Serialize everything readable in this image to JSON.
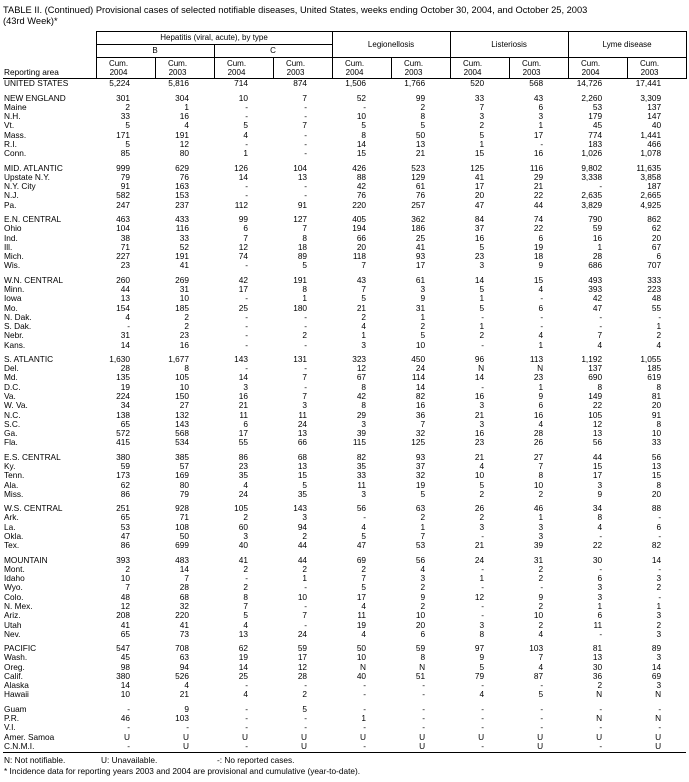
{
  "title": {
    "line1": "TABLE II. (Continued) Provisional cases of selected notifiable diseases, United States, weeks ending October 30, 2004, and October 25, 2003",
    "line2": "(43rd Week)*"
  },
  "header": {
    "reporting_area_label": "Reporting area",
    "hepatitis_group": "Hepatitis (viral, acute), by type",
    "hep_b": "B",
    "hep_c": "C",
    "legionellosis": "Legionellosis",
    "listeriosis": "Listeriosis",
    "lyme": "Lyme disease",
    "cum_label": "Cum.",
    "year_2004": "2004",
    "year_2003": "2003"
  },
  "sections": [
    {
      "rows": [
        {
          "area": "UNITED STATES",
          "values": [
            "5,224",
            "5,816",
            "714",
            "874",
            "1,506",
            "1,766",
            "520",
            "568",
            "14,726",
            "17,441"
          ]
        }
      ]
    },
    {
      "rows": [
        {
          "area": "NEW ENGLAND",
          "values": [
            "301",
            "304",
            "10",
            "7",
            "52",
            "99",
            "33",
            "43",
            "2,260",
            "3,309"
          ]
        },
        {
          "area": "Maine",
          "values": [
            "2",
            "1",
            "-",
            "-",
            "-",
            "2",
            "7",
            "6",
            "53",
            "137"
          ]
        },
        {
          "area": "N.H.",
          "values": [
            "33",
            "16",
            "-",
            "-",
            "10",
            "8",
            "3",
            "3",
            "179",
            "147"
          ]
        },
        {
          "area": "Vt.",
          "values": [
            "5",
            "4",
            "5",
            "7",
            "5",
            "5",
            "2",
            "1",
            "45",
            "40"
          ]
        },
        {
          "area": "Mass.",
          "values": [
            "171",
            "191",
            "4",
            "-",
            "8",
            "50",
            "5",
            "17",
            "774",
            "1,441"
          ]
        },
        {
          "area": "R.I.",
          "values": [
            "5",
            "12",
            "-",
            "-",
            "14",
            "13",
            "1",
            "-",
            "183",
            "466"
          ]
        },
        {
          "area": "Conn.",
          "values": [
            "85",
            "80",
            "1",
            "-",
            "15",
            "21",
            "15",
            "16",
            "1,026",
            "1,078"
          ]
        }
      ]
    },
    {
      "rows": [
        {
          "area": "MID. ATLANTIC",
          "values": [
            "999",
            "629",
            "126",
            "104",
            "426",
            "523",
            "125",
            "116",
            "9,802",
            "11,635"
          ]
        },
        {
          "area": "Upstate N.Y.",
          "values": [
            "79",
            "76",
            "14",
            "13",
            "88",
            "129",
            "41",
            "29",
            "3,338",
            "3,858"
          ]
        },
        {
          "area": "N.Y. City",
          "values": [
            "91",
            "163",
            "-",
            "-",
            "42",
            "61",
            "17",
            "21",
            "-",
            "187"
          ]
        },
        {
          "area": "N.J.",
          "values": [
            "582",
            "153",
            "-",
            "-",
            "76",
            "76",
            "20",
            "22",
            "2,635",
            "2,665"
          ]
        },
        {
          "area": "Pa.",
          "values": [
            "247",
            "237",
            "112",
            "91",
            "220",
            "257",
            "47",
            "44",
            "3,829",
            "4,925"
          ]
        }
      ]
    },
    {
      "rows": [
        {
          "area": "E.N. CENTRAL",
          "values": [
            "463",
            "433",
            "99",
            "127",
            "405",
            "362",
            "84",
            "74",
            "790",
            "862"
          ]
        },
        {
          "area": "Ohio",
          "values": [
            "104",
            "116",
            "6",
            "7",
            "194",
            "186",
            "37",
            "22",
            "59",
            "62"
          ]
        },
        {
          "area": "Ind.",
          "values": [
            "38",
            "33",
            "7",
            "8",
            "66",
            "25",
            "16",
            "6",
            "16",
            "20"
          ]
        },
        {
          "area": "Ill.",
          "values": [
            "71",
            "52",
            "12",
            "18",
            "20",
            "41",
            "5",
            "19",
            "1",
            "67"
          ]
        },
        {
          "area": "Mich.",
          "values": [
            "227",
            "191",
            "74",
            "89",
            "118",
            "93",
            "23",
            "18",
            "28",
            "6"
          ]
        },
        {
          "area": "Wis.",
          "values": [
            "23",
            "41",
            "-",
            "5",
            "7",
            "17",
            "3",
            "9",
            "686",
            "707"
          ]
        }
      ]
    },
    {
      "rows": [
        {
          "area": "W.N. CENTRAL",
          "values": [
            "260",
            "269",
            "42",
            "191",
            "43",
            "61",
            "14",
            "15",
            "493",
            "333"
          ]
        },
        {
          "area": "Minn.",
          "values": [
            "44",
            "31",
            "17",
            "8",
            "7",
            "3",
            "5",
            "4",
            "393",
            "223"
          ]
        },
        {
          "area": "Iowa",
          "values": [
            "13",
            "10",
            "-",
            "1",
            "5",
            "9",
            "1",
            "-",
            "42",
            "48"
          ]
        },
        {
          "area": "Mo.",
          "values": [
            "154",
            "185",
            "25",
            "180",
            "21",
            "31",
            "5",
            "6",
            "47",
            "55"
          ]
        },
        {
          "area": "N. Dak.",
          "values": [
            "4",
            "2",
            "-",
            "-",
            "2",
            "1",
            "-",
            "-",
            "-",
            "-"
          ]
        },
        {
          "area": "S. Dak.",
          "values": [
            "-",
            "2",
            "-",
            "-",
            "4",
            "2",
            "1",
            "-",
            "-",
            "1"
          ]
        },
        {
          "area": "Nebr.",
          "values": [
            "31",
            "23",
            "-",
            "2",
            "1",
            "5",
            "2",
            "4",
            "7",
            "2"
          ]
        },
        {
          "area": "Kans.",
          "values": [
            "14",
            "16",
            "-",
            "-",
            "3",
            "10",
            "-",
            "1",
            "4",
            "4"
          ]
        }
      ]
    },
    {
      "rows": [
        {
          "area": "S. ATLANTIC",
          "values": [
            "1,630",
            "1,677",
            "143",
            "131",
            "323",
            "450",
            "96",
            "113",
            "1,192",
            "1,055"
          ]
        },
        {
          "area": "Del.",
          "values": [
            "28",
            "8",
            "-",
            "-",
            "12",
            "24",
            "N",
            "N",
            "137",
            "185"
          ]
        },
        {
          "area": "Md.",
          "values": [
            "135",
            "105",
            "14",
            "7",
            "67",
            "114",
            "14",
            "23",
            "690",
            "619"
          ]
        },
        {
          "area": "D.C.",
          "values": [
            "19",
            "10",
            "3",
            "-",
            "8",
            "14",
            "-",
            "1",
            "8",
            "8"
          ]
        },
        {
          "area": "Va.",
          "values": [
            "224",
            "150",
            "16",
            "7",
            "42",
            "82",
            "16",
            "9",
            "149",
            "81"
          ]
        },
        {
          "area": "W. Va.",
          "values": [
            "34",
            "27",
            "21",
            "3",
            "8",
            "16",
            "3",
            "6",
            "22",
            "20"
          ]
        },
        {
          "area": "N.C.",
          "values": [
            "138",
            "132",
            "11",
            "11",
            "29",
            "36",
            "21",
            "16",
            "105",
            "91"
          ]
        },
        {
          "area": "S.C.",
          "values": [
            "65",
            "143",
            "6",
            "24",
            "3",
            "7",
            "3",
            "4",
            "12",
            "8"
          ]
        },
        {
          "area": "Ga.",
          "values": [
            "572",
            "568",
            "17",
            "13",
            "39",
            "32",
            "16",
            "28",
            "13",
            "10"
          ]
        },
        {
          "area": "Fla.",
          "values": [
            "415",
            "534",
            "55",
            "66",
            "115",
            "125",
            "23",
            "26",
            "56",
            "33"
          ]
        }
      ]
    },
    {
      "rows": [
        {
          "area": "E.S. CENTRAL",
          "values": [
            "380",
            "385",
            "86",
            "68",
            "82",
            "93",
            "21",
            "27",
            "44",
            "56"
          ]
        },
        {
          "area": "Ky.",
          "values": [
            "59",
            "57",
            "23",
            "13",
            "35",
            "37",
            "4",
            "7",
            "15",
            "13"
          ]
        },
        {
          "area": "Tenn.",
          "values": [
            "173",
            "169",
            "35",
            "15",
            "33",
            "32",
            "10",
            "8",
            "17",
            "15"
          ]
        },
        {
          "area": "Ala.",
          "values": [
            "62",
            "80",
            "4",
            "5",
            "11",
            "19",
            "5",
            "10",
            "3",
            "8"
          ]
        },
        {
          "area": "Miss.",
          "values": [
            "86",
            "79",
            "24",
            "35",
            "3",
            "5",
            "2",
            "2",
            "9",
            "20"
          ]
        }
      ]
    },
    {
      "rows": [
        {
          "area": "W.S. CENTRAL",
          "values": [
            "251",
            "928",
            "105",
            "143",
            "56",
            "63",
            "26",
            "46",
            "34",
            "88"
          ]
        },
        {
          "area": "Ark.",
          "values": [
            "65",
            "71",
            "2",
            "3",
            "-",
            "2",
            "2",
            "1",
            "8",
            "-"
          ]
        },
        {
          "area": "La.",
          "values": [
            "53",
            "108",
            "60",
            "94",
            "4",
            "1",
            "3",
            "3",
            "4",
            "6"
          ]
        },
        {
          "area": "Okla.",
          "values": [
            "47",
            "50",
            "3",
            "2",
            "5",
            "7",
            "-",
            "3",
            "-",
            "-"
          ]
        },
        {
          "area": "Tex.",
          "values": [
            "86",
            "699",
            "40",
            "44",
            "47",
            "53",
            "21",
            "39",
            "22",
            "82"
          ]
        }
      ]
    },
    {
      "rows": [
        {
          "area": "MOUNTAIN",
          "values": [
            "393",
            "483",
            "41",
            "44",
            "69",
            "56",
            "24",
            "31",
            "30",
            "14"
          ]
        },
        {
          "area": "Mont.",
          "values": [
            "2",
            "14",
            "2",
            "2",
            "2",
            "4",
            "-",
            "2",
            "-",
            "-"
          ]
        },
        {
          "area": "Idaho",
          "values": [
            "10",
            "7",
            "-",
            "1",
            "7",
            "3",
            "1",
            "2",
            "6",
            "3"
          ]
        },
        {
          "area": "Wyo.",
          "values": [
            "7",
            "28",
            "2",
            "-",
            "5",
            "2",
            "-",
            "-",
            "3",
            "2"
          ]
        },
        {
          "area": "Colo.",
          "values": [
            "48",
            "68",
            "8",
            "10",
            "17",
            "9",
            "12",
            "9",
            "3",
            "-"
          ]
        },
        {
          "area": "N. Mex.",
          "values": [
            "12",
            "32",
            "7",
            "-",
            "4",
            "2",
            "-",
            "2",
            "1",
            "1"
          ]
        },
        {
          "area": "Ariz.",
          "values": [
            "208",
            "220",
            "5",
            "7",
            "11",
            "10",
            "-",
            "10",
            "6",
            "3"
          ]
        },
        {
          "area": "Utah",
          "values": [
            "41",
            "41",
            "4",
            "-",
            "19",
            "20",
            "3",
            "2",
            "11",
            "2"
          ]
        },
        {
          "area": "Nev.",
          "values": [
            "65",
            "73",
            "13",
            "24",
            "4",
            "6",
            "8",
            "4",
            "-",
            "3"
          ]
        }
      ]
    },
    {
      "rows": [
        {
          "area": "PACIFIC",
          "values": [
            "547",
            "708",
            "62",
            "59",
            "50",
            "59",
            "97",
            "103",
            "81",
            "89"
          ]
        },
        {
          "area": "Wash.",
          "values": [
            "45",
            "63",
            "19",
            "17",
            "10",
            "8",
            "9",
            "7",
            "13",
            "3"
          ]
        },
        {
          "area": "Oreg.",
          "values": [
            "98",
            "94",
            "14",
            "12",
            "N",
            "N",
            "5",
            "4",
            "30",
            "14"
          ]
        },
        {
          "area": "Calif.",
          "values": [
            "380",
            "526",
            "25",
            "28",
            "40",
            "51",
            "79",
            "87",
            "36",
            "69"
          ]
        },
        {
          "area": "Alaska",
          "values": [
            "14",
            "4",
            "-",
            "-",
            "-",
            "-",
            "-",
            "-",
            "2",
            "3"
          ]
        },
        {
          "area": "Hawaii",
          "values": [
            "10",
            "21",
            "4",
            "2",
            "-",
            "-",
            "4",
            "5",
            "N",
            "N"
          ]
        }
      ]
    },
    {
      "rows": [
        {
          "area": "Guam",
          "values": [
            "-",
            "9",
            "-",
            "5",
            "-",
            "-",
            "-",
            "-",
            "-",
            "-"
          ]
        },
        {
          "area": "P.R.",
          "values": [
            "46",
            "103",
            "-",
            "-",
            "1",
            "-",
            "-",
            "-",
            "N",
            "N"
          ]
        },
        {
          "area": "V.I.",
          "values": [
            "-",
            "-",
            "-",
            "-",
            "-",
            "-",
            "-",
            "-",
            "-",
            "-"
          ]
        },
        {
          "area": "Amer. Samoa",
          "values": [
            "U",
            "U",
            "U",
            "U",
            "U",
            "U",
            "U",
            "U",
            "U",
            "U"
          ]
        },
        {
          "area": "C.N.M.I.",
          "values": [
            "-",
            "U",
            "-",
            "U",
            "-",
            "U",
            "-",
            "U",
            "-",
            "U"
          ]
        }
      ]
    }
  ],
  "footnotes": {
    "n": "N: Not notifiable.",
    "u": "U: Unavailable.",
    "dash": "-: No reported cases.",
    "asterisk": "* Incidence data for reporting years 2003 and 2004 are provisional and cumulative (year-to-date)."
  }
}
